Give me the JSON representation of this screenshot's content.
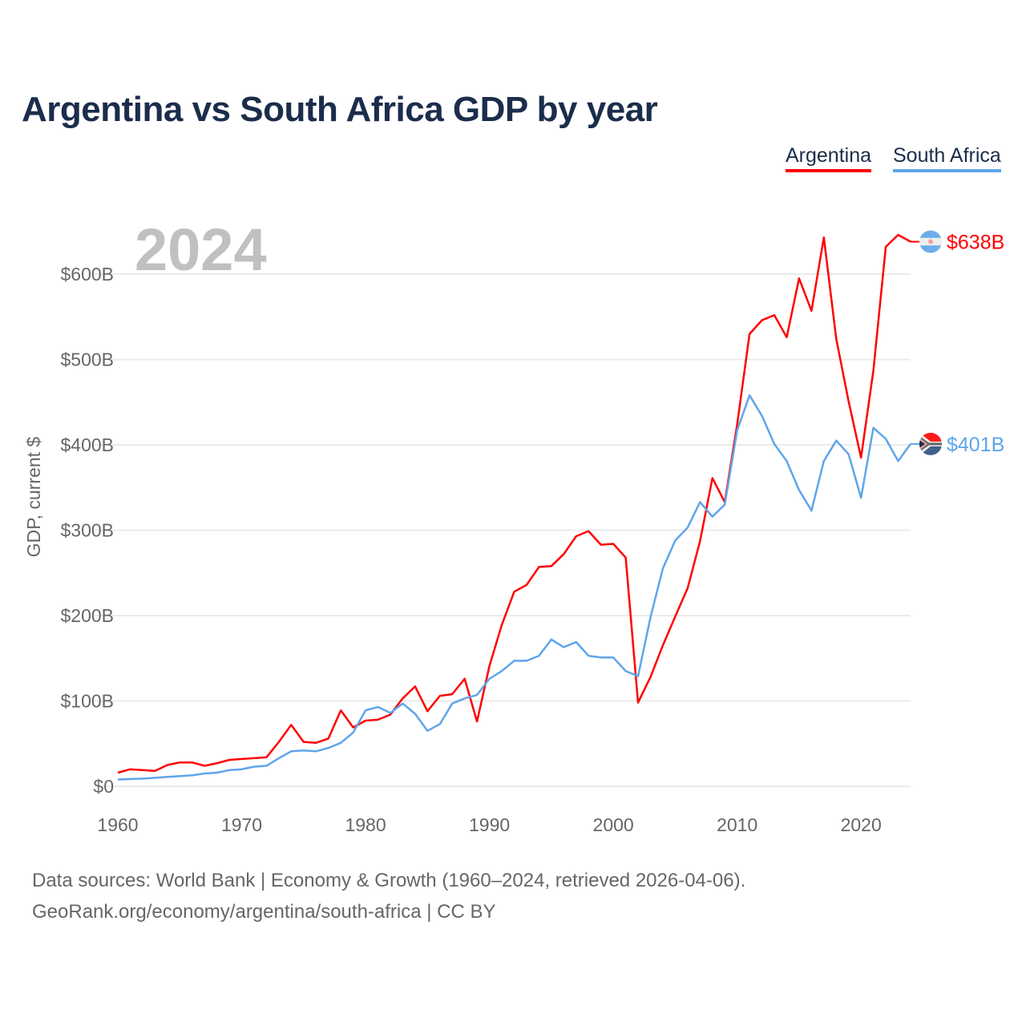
{
  "title": "Argentina vs South Africa GDP by year",
  "footer": {
    "line1": "Data sources: World Bank | Economy & Growth (1960–2024, retrieved 2026-04-06).",
    "line2": "GeoRank.org/economy/argentina/south-africa | CC BY"
  },
  "chart_data": {
    "type": "line",
    "title": "Argentina vs South Africa GDP by year",
    "xlabel": "",
    "ylabel": "GDP, current $",
    "year_label": "2024",
    "xlim": [
      1960,
      2024
    ],
    "ylim": [
      0,
      600
    ],
    "x_ticks": [
      "1960",
      "1970",
      "1980",
      "1990",
      "2000",
      "2010",
      "2020"
    ],
    "y_ticks": [
      {
        "value": 0,
        "label": "$0"
      },
      {
        "value": 100,
        "label": "$100B"
      },
      {
        "value": 200,
        "label": "$200B"
      },
      {
        "value": 300,
        "label": "$300B"
      },
      {
        "value": 400,
        "label": "$400B"
      },
      {
        "value": 500,
        "label": "$500B"
      },
      {
        "value": 600,
        "label": "$600B"
      }
    ],
    "grid": true,
    "legend_position": "top-right",
    "x_start": 1960,
    "series": [
      {
        "name": "Argentina",
        "color": "#ff0000",
        "end_label": "$638B",
        "flag": "argentina-flag",
        "values": [
          16,
          20,
          19,
          18,
          25,
          28,
          28,
          24,
          27,
          31,
          32,
          33,
          34,
          52,
          72,
          52,
          51,
          56,
          89,
          69,
          77,
          78,
          84,
          103,
          117,
          88,
          106,
          108,
          126,
          76,
          141,
          189,
          228,
          236,
          257,
          258,
          272,
          293,
          299,
          283,
          284,
          268,
          98,
          128,
          165,
          199,
          232,
          287,
          361,
          333,
          424,
          530,
          546,
          552,
          526,
          595,
          557,
          643,
          524,
          451,
          385,
          487,
          632,
          646,
          638
        ]
      },
      {
        "name": "South Africa",
        "color": "#5fa5ea",
        "end_label": "$401B",
        "flag": "south-africa-flag",
        "values": [
          8,
          8.5,
          9,
          10,
          11,
          12,
          13,
          15,
          16,
          19,
          20,
          23,
          24,
          33,
          41,
          42,
          41,
          45,
          51,
          63,
          89,
          93,
          86,
          97,
          85,
          65,
          73,
          97,
          103,
          107,
          126,
          135,
          147,
          147,
          153,
          172,
          163,
          169,
          153,
          151,
          151,
          135,
          129,
          198,
          255,
          288,
          303,
          333,
          316,
          330,
          417,
          458,
          434,
          401,
          381,
          347,
          323,
          381,
          405,
          389,
          338,
          420,
          407,
          381,
          401
        ]
      }
    ]
  }
}
